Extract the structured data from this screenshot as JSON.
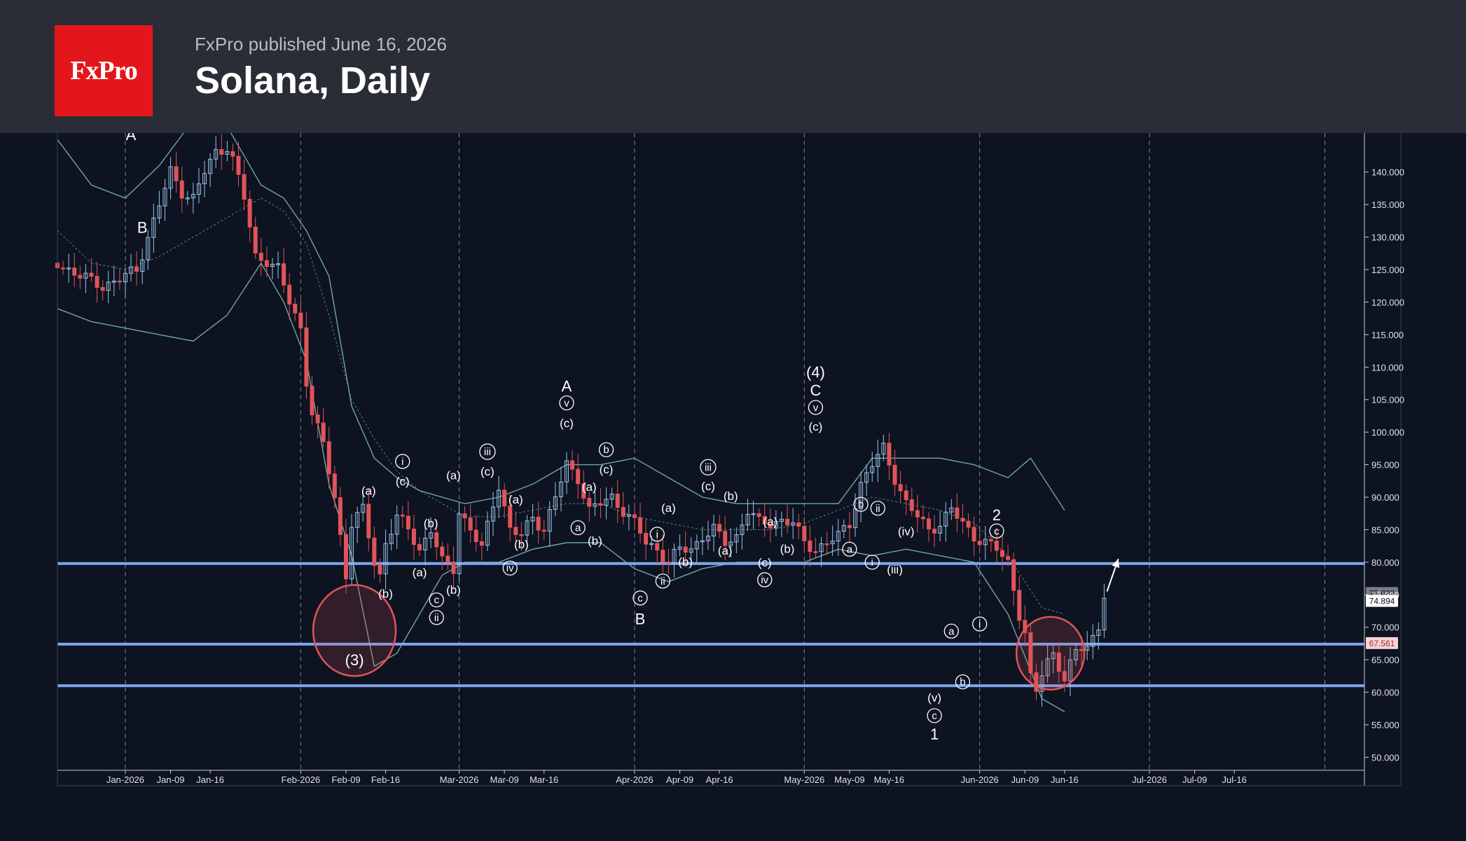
{
  "header": {
    "logo_text": "FxPro",
    "publisher": "FxPro published June 16, 2026",
    "title": "Solana, Daily"
  },
  "colors": {
    "background": "#0d1320",
    "header": "#2a2d36",
    "brand": "#e3171b",
    "bull": "#9ec3e8",
    "bear": "#e0545a",
    "level": "#7ea6f0",
    "band": "#6fa7a4",
    "circle": "#e0545a"
  },
  "chart_data": {
    "type": "candlestick",
    "title": "Solana, Daily",
    "ylim": [
      48,
      146
    ],
    "y_ticks": [
      "140.000",
      "135.000",
      "130.000",
      "125.000",
      "120.000",
      "115.000",
      "110.000",
      "105.000",
      "100.000",
      "95.000",
      "90.000",
      "85.000",
      "80.000",
      "75.000",
      "70.000",
      "65.000",
      "60.000",
      "55.000",
      "50.000"
    ],
    "x_ticks": [
      {
        "label": "Jan-2026",
        "day": 0,
        "major": true
      },
      {
        "label": "Jan-09",
        "day": 8,
        "major": false
      },
      {
        "label": "Jan-16",
        "day": 15,
        "major": false
      },
      {
        "label": "Feb-2026",
        "day": 31,
        "major": true
      },
      {
        "label": "Feb-09",
        "day": 39,
        "major": false
      },
      {
        "label": "Feb-16",
        "day": 46,
        "major": false
      },
      {
        "label": "Mar-2026",
        "day": 59,
        "major": true
      },
      {
        "label": "Mar-09",
        "day": 67,
        "major": false
      },
      {
        "label": "Mar-16",
        "day": 74,
        "major": false
      },
      {
        "label": "Apr-2026",
        "day": 90,
        "major": true
      },
      {
        "label": "Apr-09",
        "day": 98,
        "major": false
      },
      {
        "label": "Apr-16",
        "day": 105,
        "major": false
      },
      {
        "label": "May-2026",
        "day": 120,
        "major": true
      },
      {
        "label": "May-09",
        "day": 128,
        "major": false
      },
      {
        "label": "May-16",
        "day": 135,
        "major": false
      },
      {
        "label": "Jun-2026",
        "day": 151,
        "major": true
      },
      {
        "label": "Jun-09",
        "day": 159,
        "major": false
      },
      {
        "label": "Jun-16",
        "day": 166,
        "major": false
      },
      {
        "label": "Jul-2026",
        "day": 181,
        "major": true
      },
      {
        "label": "Jul-09",
        "day": 189,
        "major": false
      },
      {
        "label": "Jul-16",
        "day": 196,
        "major": false
      }
    ],
    "extra_gridline_days": [
      212
    ],
    "x_range": [
      -12,
      219
    ],
    "levels": [
      79.8,
      67.4,
      61.0
    ],
    "price_tags": [
      {
        "label": "75.033",
        "value": 75.2,
        "style": "faint"
      },
      {
        "label": "74.894",
        "value": 74.0,
        "style": "white"
      },
      {
        "label": "67.561",
        "value": 67.5,
        "style": "red"
      }
    ],
    "path": [
      [
        -12,
        126
      ],
      [
        -8,
        124
      ],
      [
        -4,
        122.5
      ],
      [
        -1,
        123.5
      ],
      [
        2,
        125
      ],
      [
        4,
        130
      ],
      [
        6,
        135
      ],
      [
        8,
        140
      ],
      [
        10,
        137
      ],
      [
        12,
        136
      ],
      [
        14,
        140
      ],
      [
        16,
        143
      ],
      [
        18,
        144
      ],
      [
        19,
        142
      ],
      [
        21,
        136
      ],
      [
        23,
        127
      ],
      [
        25,
        126.5
      ],
      [
        27,
        125
      ],
      [
        29,
        120
      ],
      [
        31,
        116
      ],
      [
        32,
        108
      ],
      [
        33,
        103
      ],
      [
        35,
        98
      ],
      [
        37,
        90
      ],
      [
        38,
        84
      ],
      [
        39,
        78
      ],
      [
        40,
        86
      ],
      [
        42,
        88
      ],
      [
        44,
        80
      ],
      [
        45,
        78
      ],
      [
        46,
        83
      ],
      [
        48,
        87
      ],
      [
        50,
        85
      ],
      [
        52,
        82
      ],
      [
        54,
        85
      ],
      [
        56,
        80
      ],
      [
        58,
        79
      ],
      [
        59,
        88
      ],
      [
        61,
        85
      ],
      [
        63,
        82
      ],
      [
        65,
        89
      ],
      [
        66,
        92
      ],
      [
        68,
        85
      ],
      [
        70,
        84
      ],
      [
        72,
        87
      ],
      [
        74,
        85
      ],
      [
        76,
        90
      ],
      [
        78,
        95
      ],
      [
        80,
        93
      ],
      [
        82,
        88
      ],
      [
        84,
        89
      ],
      [
        86,
        90
      ],
      [
        88,
        88
      ],
      [
        90,
        86
      ],
      [
        92,
        83
      ],
      [
        94,
        82
      ],
      [
        96,
        80
      ],
      [
        98,
        82
      ],
      [
        100,
        82
      ],
      [
        102,
        84
      ],
      [
        104,
        85
      ],
      [
        106,
        83
      ],
      [
        108,
        84
      ],
      [
        110,
        88
      ],
      [
        112,
        86
      ],
      [
        114,
        86
      ],
      [
        116,
        86.5
      ],
      [
        118,
        86
      ],
      [
        120,
        83
      ],
      [
        122,
        82
      ],
      [
        124,
        83
      ],
      [
        126,
        84
      ],
      [
        128,
        86
      ],
      [
        130,
        92
      ],
      [
        132,
        95
      ],
      [
        134,
        97.5
      ],
      [
        136,
        93
      ],
      [
        138,
        89
      ],
      [
        140,
        87
      ],
      [
        142,
        85
      ],
      [
        144,
        86
      ],
      [
        146,
        88
      ],
      [
        148,
        86
      ],
      [
        150,
        84
      ],
      [
        152,
        83
      ],
      [
        154,
        82
      ],
      [
        156,
        80
      ],
      [
        158,
        72
      ],
      [
        159,
        69
      ],
      [
        160,
        62
      ],
      [
        161,
        60
      ],
      [
        162,
        63
      ],
      [
        163,
        65
      ],
      [
        164,
        66
      ],
      [
        165,
        64
      ],
      [
        166,
        62
      ],
      [
        167,
        64
      ],
      [
        168,
        66
      ],
      [
        169,
        67
      ],
      [
        170,
        67.3
      ],
      [
        171,
        68.5
      ],
      [
        172,
        70
      ],
      [
        173,
        75
      ]
    ],
    "bands": {
      "upper": [
        [
          -12,
          145
        ],
        [
          -6,
          138
        ],
        [
          0,
          136
        ],
        [
          6,
          141
        ],
        [
          12,
          148
        ],
        [
          18,
          147
        ],
        [
          24,
          138
        ],
        [
          28,
          136
        ],
        [
          32,
          131
        ],
        [
          36,
          124
        ],
        [
          40,
          104
        ],
        [
          44,
          96
        ],
        [
          48,
          93
        ],
        [
          52,
          91
        ],
        [
          56,
          90
        ],
        [
          60,
          89
        ],
        [
          66,
          90
        ],
        [
          72,
          92
        ],
        [
          78,
          95
        ],
        [
          84,
          95
        ],
        [
          90,
          96
        ],
        [
          96,
          93
        ],
        [
          102,
          90
        ],
        [
          108,
          89
        ],
        [
          114,
          89
        ],
        [
          120,
          89
        ],
        [
          126,
          89
        ],
        [
          132,
          96
        ],
        [
          138,
          96
        ],
        [
          144,
          96
        ],
        [
          150,
          95
        ],
        [
          156,
          93
        ],
        [
          160,
          96
        ],
        [
          166,
          88
        ]
      ],
      "middle": [
        [
          -12,
          131
        ],
        [
          -6,
          126
        ],
        [
          0,
          125
        ],
        [
          6,
          127
        ],
        [
          12,
          130
        ],
        [
          18,
          133
        ],
        [
          24,
          136
        ],
        [
          28,
          134
        ],
        [
          32,
          129
        ],
        [
          36,
          118
        ],
        [
          40,
          105
        ],
        [
          44,
          99
        ],
        [
          48,
          94
        ],
        [
          52,
          91
        ],
        [
          56,
          89
        ],
        [
          60,
          87
        ],
        [
          66,
          87
        ],
        [
          72,
          88
        ],
        [
          78,
          89
        ],
        [
          84,
          89
        ],
        [
          90,
          87
        ],
        [
          96,
          86
        ],
        [
          102,
          85
        ],
        [
          108,
          85
        ],
        [
          114,
          85
        ],
        [
          120,
          86
        ],
        [
          126,
          88
        ],
        [
          132,
          90
        ],
        [
          138,
          89
        ],
        [
          144,
          88
        ],
        [
          150,
          86
        ],
        [
          156,
          81
        ],
        [
          162,
          73
        ],
        [
          166,
          72
        ]
      ],
      "lower": [
        [
          -12,
          119
        ],
        [
          -6,
          117
        ],
        [
          0,
          116
        ],
        [
          6,
          115
        ],
        [
          12,
          114
        ],
        [
          18,
          118
        ],
        [
          24,
          126
        ],
        [
          28,
          120
        ],
        [
          32,
          111
        ],
        [
          36,
          92
        ],
        [
          40,
          81
        ],
        [
          44,
          64
        ],
        [
          48,
          66
        ],
        [
          52,
          72
        ],
        [
          56,
          78
        ],
        [
          60,
          80
        ],
        [
          66,
          80
        ],
        [
          72,
          82
        ],
        [
          78,
          83
        ],
        [
          84,
          83
        ],
        [
          90,
          79
        ],
        [
          96,
          77
        ],
        [
          102,
          79
        ],
        [
          108,
          80
        ],
        [
          114,
          80
        ],
        [
          120,
          80
        ],
        [
          126,
          82
        ],
        [
          132,
          81
        ],
        [
          138,
          82
        ],
        [
          144,
          81
        ],
        [
          150,
          80
        ],
        [
          156,
          72
        ],
        [
          162,
          59
        ],
        [
          166,
          57
        ]
      ]
    },
    "circles": [
      {
        "day": 40.5,
        "value": 69.5,
        "rx_days": 7.3,
        "ry_value": 7.0
      },
      {
        "day": 163.5,
        "value": 66.0,
        "rx_days": 6.0,
        "ry_value": 5.6
      }
    ],
    "projection_arrow": {
      "from": [
        173.5,
        75.5
      ],
      "to": [
        175.5,
        80.5
      ]
    },
    "labels": [
      {
        "t": "A",
        "day": 1,
        "value": 145.8,
        "style": "plain"
      },
      {
        "t": "B",
        "day": 3,
        "value": 131.5,
        "style": "plain"
      },
      {
        "t": "(a)",
        "day": 43,
        "value": 91,
        "style": "small"
      },
      {
        "t": "i",
        "day": 49,
        "value": 95.5,
        "style": "circled"
      },
      {
        "t": "(c)",
        "day": 49,
        "value": 92.5,
        "style": "small"
      },
      {
        "t": "(b)",
        "day": 54,
        "value": 86,
        "style": "small"
      },
      {
        "t": "(a)",
        "day": 52,
        "value": 78.5,
        "style": "small"
      },
      {
        "t": "(b)",
        "day": 46,
        "value": 75.2,
        "style": "small"
      },
      {
        "t": "c",
        "day": 55,
        "value": 74.2,
        "style": "circled"
      },
      {
        "t": "ii",
        "day": 55,
        "value": 71.5,
        "style": "circled"
      },
      {
        "t": "(3)",
        "day": 40.5,
        "value": 65,
        "style": "plain"
      },
      {
        "t": "(a)",
        "day": 58,
        "value": 93.4,
        "style": "small"
      },
      {
        "t": "(b)",
        "day": 58,
        "value": 75.8,
        "style": "small"
      },
      {
        "t": "iii",
        "day": 64,
        "value": 97,
        "style": "circled"
      },
      {
        "t": "(c)",
        "day": 64,
        "value": 94,
        "style": "small"
      },
      {
        "t": "(a)",
        "day": 69,
        "value": 89.7,
        "style": "small"
      },
      {
        "t": "(b)",
        "day": 70,
        "value": 82.8,
        "style": "small"
      },
      {
        "t": "iv",
        "day": 68,
        "value": 79.1,
        "style": "circled"
      },
      {
        "t": "A",
        "day": 78,
        "value": 107.1,
        "style": "plain"
      },
      {
        "t": "v",
        "day": 78,
        "value": 104.5,
        "style": "circled"
      },
      {
        "t": "(c)",
        "day": 78,
        "value": 101.4,
        "style": "small"
      },
      {
        "t": "(a)",
        "day": 82,
        "value": 91.6,
        "style": "small"
      },
      {
        "t": "a",
        "day": 80,
        "value": 85.3,
        "style": "circled"
      },
      {
        "t": "b",
        "day": 85,
        "value": 97.3,
        "style": "circled"
      },
      {
        "t": "(c)",
        "day": 85,
        "value": 94.3,
        "style": "small"
      },
      {
        "t": "(b)",
        "day": 83,
        "value": 83.3,
        "style": "small"
      },
      {
        "t": "c",
        "day": 91,
        "value": 74.5,
        "style": "circled"
      },
      {
        "t": "B",
        "day": 91,
        "value": 71.3,
        "style": "plain"
      },
      {
        "t": "i",
        "day": 94,
        "value": 84.3,
        "style": "circled"
      },
      {
        "t": "ii",
        "day": 95,
        "value": 77.1,
        "style": "circled"
      },
      {
        "t": "(a)",
        "day": 96,
        "value": 88.4,
        "style": "small"
      },
      {
        "t": "(b)",
        "day": 99,
        "value": 80.1,
        "style": "small"
      },
      {
        "t": "iii",
        "day": 103,
        "value": 94.6,
        "style": "circled"
      },
      {
        "t": "(c)",
        "day": 103,
        "value": 91.7,
        "style": "small"
      },
      {
        "t": "(b)",
        "day": 107,
        "value": 90.2,
        "style": "small"
      },
      {
        "t": "(a)",
        "day": 106,
        "value": 81.8,
        "style": "small"
      },
      {
        "t": "(a)",
        "day": 114,
        "value": 86.3,
        "style": "small"
      },
      {
        "t": "(b)",
        "day": 117,
        "value": 82.1,
        "style": "small"
      },
      {
        "t": "(c)",
        "day": 113,
        "value": 80,
        "style": "small"
      },
      {
        "t": "iv",
        "day": 113,
        "value": 77.3,
        "style": "circled"
      },
      {
        "t": "(4)",
        "day": 122,
        "value": 109.3,
        "style": "plain"
      },
      {
        "t": "C",
        "day": 122,
        "value": 106.5,
        "style": "plain"
      },
      {
        "t": "v",
        "day": 122,
        "value": 103.8,
        "style": "circled"
      },
      {
        "t": "(c)",
        "day": 122,
        "value": 100.9,
        "style": "small"
      },
      {
        "t": "b",
        "day": 130,
        "value": 88.9,
        "style": "circled"
      },
      {
        "t": "ii",
        "day": 133,
        "value": 88.3,
        "style": "circled"
      },
      {
        "t": "a",
        "day": 128,
        "value": 82,
        "style": "circled"
      },
      {
        "t": "(iv)",
        "day": 138,
        "value": 84.8,
        "style": "small"
      },
      {
        "t": "i",
        "day": 132,
        "value": 80,
        "style": "circled"
      },
      {
        "t": "(iii)",
        "day": 136,
        "value": 78.9,
        "style": "small"
      },
      {
        "t": "a",
        "day": 146,
        "value": 69.4,
        "style": "circled"
      },
      {
        "t": "i",
        "day": 151,
        "value": 70.5,
        "style": "circled"
      },
      {
        "t": "b",
        "day": 148,
        "value": 61.6,
        "style": "circled"
      },
      {
        "t": "(v)",
        "day": 143,
        "value": 59.2,
        "style": "small"
      },
      {
        "t": "c",
        "day": 143,
        "value": 56.4,
        "style": "circled"
      },
      {
        "t": "1",
        "day": 143,
        "value": 53.6,
        "style": "plain"
      },
      {
        "t": "2",
        "day": 154,
        "value": 87.3,
        "style": "plain"
      },
      {
        "t": "c",
        "day": 154,
        "value": 84.8,
        "style": "circled"
      }
    ]
  }
}
